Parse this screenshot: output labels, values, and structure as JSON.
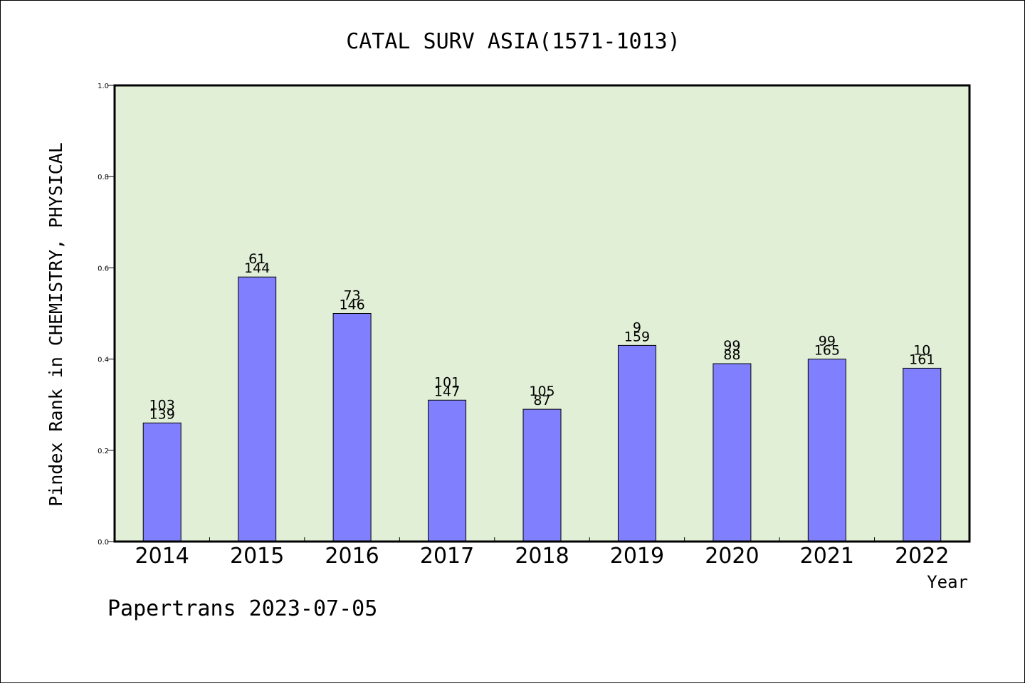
{
  "chart_data": {
    "type": "bar",
    "title": "CATAL SURV ASIA(1571-1013)",
    "xlabel": "Year",
    "ylabel": "Pindex Rank in CHEMISTRY, PHYSICAL",
    "ylim": [
      0,
      1.0
    ],
    "yticks": [
      "0.0",
      "0.2",
      "0.4",
      "0.6",
      "0.8",
      "1.0"
    ],
    "categories": [
      "2014",
      "2015",
      "2016",
      "2017",
      "2018",
      "2019",
      "2020",
      "2021",
      "2022"
    ],
    "values": [
      0.26,
      0.58,
      0.5,
      0.31,
      0.29,
      0.43,
      0.39,
      0.4,
      0.38
    ],
    "labels_top": [
      "103",
      "61",
      "73",
      "101",
      "105",
      "9",
      "99",
      "99",
      "10"
    ],
    "labels_bottom": [
      "139",
      "144",
      "146",
      "147",
      "87",
      "159",
      "88",
      "165",
      "161"
    ],
    "grid": false,
    "colors": {
      "bar": "#8080ff",
      "plot_bg": "#e2efd7"
    }
  },
  "footer": "Papertrans 2023-07-05"
}
